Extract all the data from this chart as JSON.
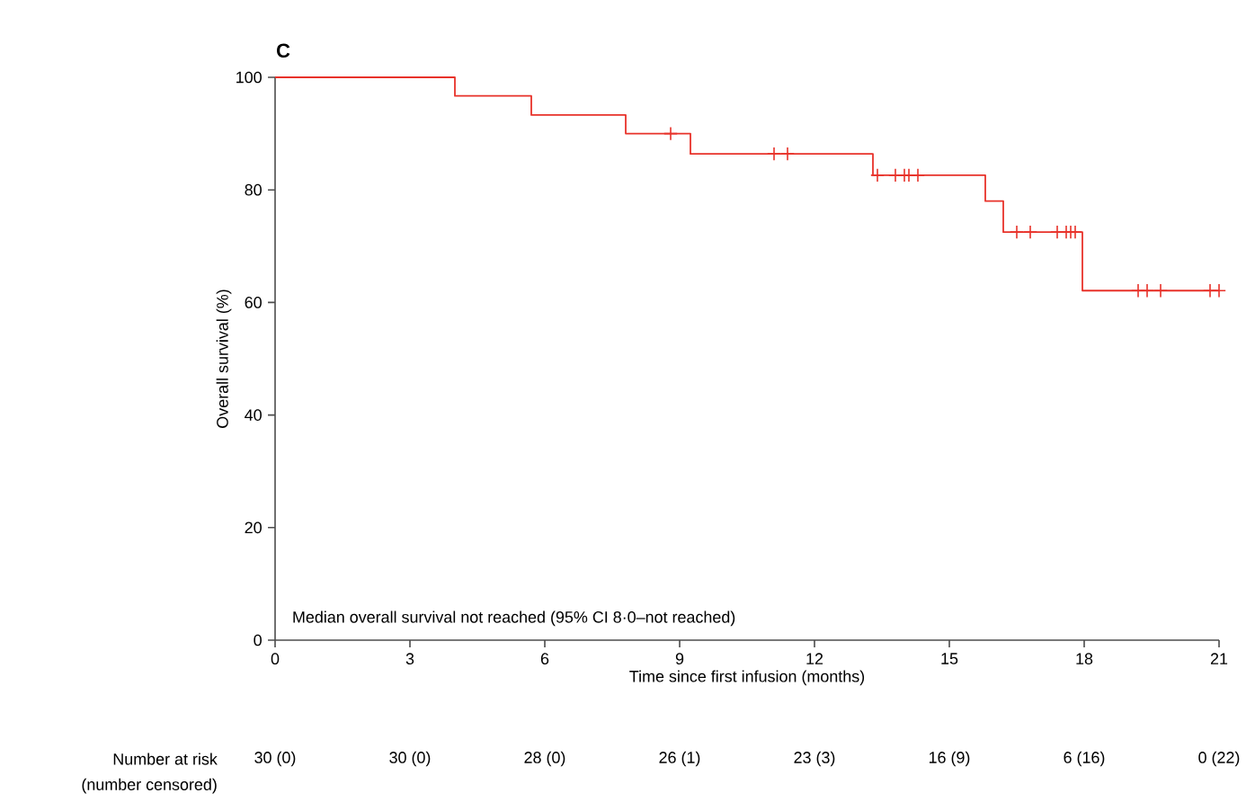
{
  "chart_data": {
    "type": "step",
    "xlabel": "Time since first infusion (months)",
    "ylabel": "Overall survival (%)",
    "xlim": [
      0,
      21
    ],
    "xticks": [
      0,
      3,
      6,
      9,
      12,
      15,
      18,
      21
    ],
    "ylim": [
      0,
      100
    ],
    "yticks": [
      0,
      20,
      40,
      60,
      80,
      100
    ],
    "grid": false,
    "series": [
      {
        "color": "#e8322a",
        "x": [
          0,
          4.0,
          5.7,
          7.8,
          9.24,
          13.3,
          15.8,
          16.2,
          17.96,
          21.0
        ],
        "values": [
          100,
          96.7,
          93.3,
          90.0,
          86.4,
          82.6,
          78.0,
          72.5,
          62.1,
          62.1
        ]
      },
      {
        "type": "scatter",
        "marker": "cross",
        "color": "#e8322a",
        "x": [
          8.8,
          11.1,
          11.4,
          13.4,
          13.8,
          14.0,
          14.1,
          14.3,
          16.5,
          16.8,
          17.4,
          17.6,
          17.7,
          17.8,
          19.2,
          19.4,
          19.7,
          20.8,
          21.0
        ],
        "values": [
          90.0,
          86.4,
          86.4,
          82.6,
          82.6,
          82.6,
          82.6,
          82.6,
          72.5,
          72.5,
          72.5,
          72.5,
          72.5,
          72.5,
          62.1,
          62.1,
          62.1,
          62.1,
          62.1
        ]
      }
    ],
    "annotations": [
      "C",
      "Median overall survival not reached (95% CI 8·0–not reached)",
      "Number at risk",
      "(number censored)",
      "30 (0)",
      "30 (0)",
      "28 (0)",
      "26 (1)",
      "23 (3)",
      "16 (9)",
      "6 (16)",
      "0 (22)"
    ]
  }
}
